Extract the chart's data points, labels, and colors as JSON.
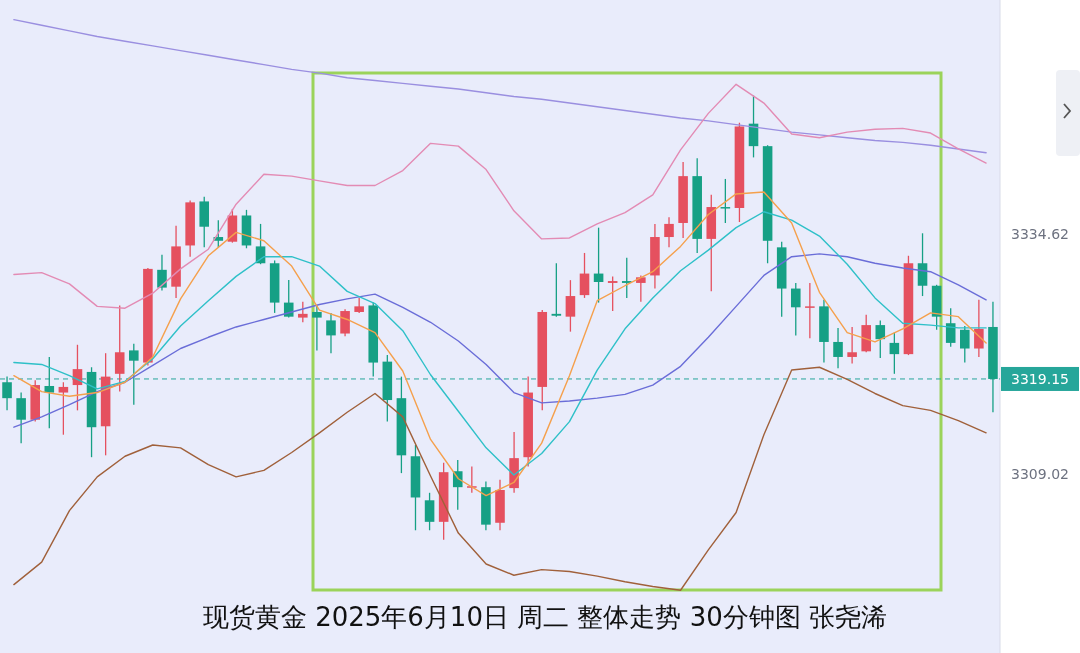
{
  "chart_data": [
    {
      "type": "candlestick",
      "categories": [
        null,
        null,
        null,
        null,
        null,
        null,
        null,
        null,
        null,
        null,
        null,
        null,
        null,
        null,
        null,
        null,
        null,
        null,
        null,
        null,
        null,
        null,
        null,
        null,
        null,
        null,
        null,
        null,
        null,
        null,
        null,
        null,
        null,
        null,
        null,
        null,
        null,
        null,
        null,
        null,
        null,
        null,
        null,
        null,
        null,
        null,
        null,
        null,
        null,
        null,
        null,
        null,
        null,
        null,
        null,
        null,
        null,
        null,
        null,
        null,
        null,
        null,
        null,
        null,
        null,
        null,
        null,
        null,
        null,
        null,
        null
      ],
      "ohlc": [
        [
          3318.8,
          3319.4,
          3315.8,
          3317.1
        ],
        [
          3317.1,
          3317.7,
          3312.3,
          3314.8
        ],
        [
          3314.8,
          3319.0,
          3314.6,
          3318.5
        ],
        [
          3318.4,
          3321.5,
          3313.9,
          3317.7
        ],
        [
          3317.7,
          3318.8,
          3313.2,
          3318.3
        ],
        [
          3318.5,
          3322.8,
          3315.8,
          3320.2
        ],
        [
          3319.9,
          3320.4,
          3310.8,
          3314.0
        ],
        [
          3314.1,
          3321.9,
          3311.0,
          3319.4
        ],
        [
          3319.7,
          3327.0,
          3317.8,
          3322.0
        ],
        [
          3322.2,
          3322.9,
          3316.4,
          3321.1
        ],
        [
          3320.9,
          3331.0,
          3320.6,
          3330.9
        ],
        [
          3330.8,
          3332.4,
          3328.6,
          3328.9
        ],
        [
          3329.0,
          3335.5,
          3327.8,
          3333.3
        ],
        [
          3333.4,
          3338.2,
          3332.2,
          3338.0
        ],
        [
          3338.1,
          3338.6,
          3333.2,
          3335.4
        ],
        [
          3334.3,
          3336.1,
          3333.2,
          3333.9
        ],
        [
          3333.8,
          3337.3,
          3333.7,
          3336.6
        ],
        [
          3336.6,
          3337.2,
          3333.1,
          3333.4
        ],
        [
          3333.3,
          3335.7,
          3331.4,
          3331.5
        ],
        [
          3331.5,
          3331.8,
          3326.2,
          3327.3
        ],
        [
          3327.3,
          3329.7,
          3325.7,
          3325.8
        ],
        [
          3325.7,
          3327.4,
          3325.2,
          3326.1
        ],
        [
          3326.3,
          3327.0,
          3322.2,
          3325.7
        ],
        [
          3325.4,
          3326.2,
          3321.9,
          3323.8
        ],
        [
          3324.0,
          3326.6,
          3323.7,
          3326.4
        ],
        [
          3326.3,
          3327.8,
          3326.2,
          3326.9
        ],
        [
          3327.0,
          3327.3,
          3319.4,
          3320.9
        ],
        [
          3321.0,
          3321.7,
          3314.6,
          3316.9
        ],
        [
          3317.1,
          3319.4,
          3309.1,
          3311.0
        ],
        [
          3310.9,
          3312.1,
          3303.0,
          3306.5
        ],
        [
          3306.2,
          3307.0,
          3303.0,
          3303.9
        ],
        [
          3303.9,
          3310.2,
          3302.0,
          3309.2
        ],
        [
          3309.3,
          3310.5,
          3305.2,
          3307.6
        ],
        [
          3307.6,
          3309.8,
          3307.0,
          3307.7
        ],
        [
          3307.6,
          3308.2,
          3303.0,
          3303.6
        ],
        [
          3303.8,
          3308.4,
          3303.0,
          3307.3
        ],
        [
          3307.5,
          3313.5,
          3307.0,
          3310.7
        ],
        [
          3310.8,
          3319.4,
          3309.8,
          3317.7
        ],
        [
          3318.3,
          3326.5,
          3315.8,
          3326.3
        ],
        [
          3326.1,
          3331.5,
          3325.8,
          3325.9
        ],
        [
          3325.8,
          3329.7,
          3324.2,
          3328.0
        ],
        [
          3328.1,
          3332.6,
          3327.8,
          3330.4
        ],
        [
          3330.4,
          3335.3,
          3327.3,
          3329.5
        ],
        [
          3329.4,
          3330.1,
          3326.4,
          3329.6
        ],
        [
          3329.6,
          3332.1,
          3327.8,
          3329.4
        ],
        [
          3329.4,
          3330.2,
          3327.4,
          3330.0
        ],
        [
          3330.2,
          3335.7,
          3328.8,
          3334.3
        ],
        [
          3334.3,
          3336.4,
          3333.2,
          3335.7
        ],
        [
          3335.8,
          3342.3,
          3334.2,
          3340.8
        ],
        [
          3340.8,
          3342.7,
          3332.6,
          3334.1
        ],
        [
          3334.1,
          3338.8,
          3328.5,
          3337.5
        ],
        [
          3337.5,
          3340.5,
          3335.8,
          3337.4
        ],
        [
          3337.4,
          3346.5,
          3335.9,
          3346.1
        ],
        [
          3346.4,
          3349.4,
          3342.8,
          3344.0
        ],
        [
          3344.0,
          3344.1,
          3331.5,
          3333.9
        ],
        [
          3333.2,
          3333.8,
          3325.8,
          3328.8
        ],
        [
          3328.8,
          3329.4,
          3323.8,
          3326.8
        ],
        [
          3326.8,
          3329.4,
          3323.5,
          3326.9
        ],
        [
          3326.9,
          3327.6,
          3320.9,
          3323.1
        ],
        [
          3323.1,
          3324.6,
          3320.3,
          3321.5
        ],
        [
          3321.5,
          3324.7,
          3320.8,
          3322.0
        ],
        [
          3322.1,
          3326.0,
          3322.0,
          3324.9
        ],
        [
          3324.9,
          3325.4,
          3321.4,
          3323.4
        ],
        [
          3323.0,
          3324.1,
          3319.7,
          3321.8
        ],
        [
          3321.8,
          3332.3,
          3321.7,
          3331.5
        ],
        [
          3331.5,
          3334.7,
          3328.0,
          3329.1
        ],
        [
          3329.1,
          3329.2,
          3324.4,
          3325.8
        ],
        [
          3325.1,
          3326.7,
          3322.6,
          3323.0
        ],
        [
          3324.4,
          3324.8,
          3320.9,
          3322.4
        ],
        [
          3322.4,
          3327.6,
          3321.5,
          3324.5
        ],
        [
          3324.7,
          3327.4,
          3315.6,
          3319.15
        ]
      ],
      "colors": [
        "#16a085",
        "#16a085",
        "#e5505f",
        "#16a085",
        "#e5505f",
        "#e5505f",
        "#16a085",
        "#e5505f",
        "#e5505f",
        "#16a085",
        "#e5505f",
        "#16a085",
        "#e5505f",
        "#e5505f",
        "#16a085",
        "#16a085",
        "#e5505f",
        "#16a085",
        "#16a085",
        "#16a085",
        "#16a085",
        "#e5505f",
        "#16a085",
        "#16a085",
        "#e5505f",
        "#e5505f",
        "#16a085",
        "#16a085",
        "#16a085",
        "#16a085",
        "#16a085",
        "#e5505f",
        "#16a085",
        "#e5505f",
        "#16a085",
        "#e5505f",
        "#e5505f",
        "#e5505f",
        "#e5505f",
        "#16a085",
        "#e5505f",
        "#e5505f",
        "#16a085",
        "#e5505f",
        "#16a085",
        "#e5505f",
        "#e5505f",
        "#e5505f",
        "#e5505f",
        "#16a085",
        "#e5505f",
        "#16a085",
        "#e5505f",
        "#16a085",
        "#16a085",
        "#16a085",
        "#16a085",
        "#e5505f",
        "#16a085",
        "#16a085",
        "#e5505f",
        "#e5505f",
        "#16a085",
        "#16a085",
        "#e5505f",
        "#16a085",
        "#16a085",
        "#16a085",
        "#16a085",
        "#e5505f",
        "#16a085"
      ],
      "ylim": [
        3289.9,
        3359.6
      ],
      "yticks": [
        3334.62,
        3309.02
      ],
      "tick_labels": "y",
      "ref_lines": [
        {
          "axis": "y",
          "value": 3319.15,
          "label": "3319.15",
          "color": "#26a69a",
          "line_style": "dashed"
        }
      ],
      "annotations": [
        "现货黄金 2025年6月10日 周二 整体走势  30分钟图 张尧浠"
      ]
    },
    {
      "type": "line",
      "categories": [
        null,
        null,
        null,
        null,
        null,
        null,
        null,
        null,
        null,
        null,
        null,
        null,
        null,
        null,
        null,
        null,
        null,
        null,
        null,
        null,
        null,
        null,
        null,
        null,
        null,
        null,
        null,
        null,
        null,
        null,
        null,
        null,
        null,
        null,
        null,
        null
      ],
      "series": [
        {
          "color": "#9a8fe0",
          "values": [
            3357.5,
            3356.9,
            3356.3,
            3355.7,
            3355.2,
            3354.7,
            3354.2,
            3353.7,
            3353.2,
            3352.7,
            3352.2,
            3351.8,
            3351.3,
            3351.0,
            3350.7,
            3350.4,
            3350.1,
            3349.7,
            3349.3,
            3349.0,
            3348.6,
            3348.2,
            3347.8,
            3347.4,
            3347.0,
            3346.7,
            3346.3,
            3345.9,
            3345.5,
            3345.2,
            3344.9,
            3344.6,
            3344.4,
            3344.1,
            3343.7,
            3343.3
          ]
        },
        {
          "color": "#e38bb4",
          "values": [
            3330.3,
            3330.5,
            3329.3,
            3326.9,
            3326.7,
            3328.3,
            3330.9,
            3333.0,
            3337.8,
            3341.0,
            3340.8,
            3340.3,
            3339.8,
            3339.8,
            3341.4,
            3344.3,
            3344.0,
            3341.5,
            3337.1,
            3334.1,
            3334.2,
            3335.7,
            3336.9,
            3338.8,
            3343.6,
            3347.5,
            3350.6,
            3348.6,
            3345.3,
            3344.9,
            3345.5,
            3345.8,
            3345.9,
            3345.4,
            3343.7,
            3342.2
          ]
        },
        {
          "color": "#a0603a",
          "values": [
            3297.2,
            3299.6,
            3305.1,
            3308.7,
            3310.9,
            3312.1,
            3311.8,
            3310.0,
            3308.7,
            3309.4,
            3311.3,
            3313.4,
            3315.6,
            3317.6,
            3315.1,
            3308.8,
            3302.7,
            3299.4,
            3298.2,
            3298.8,
            3298.6,
            3298.1,
            3297.5,
            3297.0,
            3296.6,
            3300.9,
            3304.9,
            3313.2,
            3320.1,
            3320.4,
            3319.1,
            3317.6,
            3316.3,
            3315.8,
            3314.7,
            3313.4
          ]
        },
        {
          "color": "#6a6dd8",
          "values": [
            3314.0,
            3315.1,
            3316.4,
            3317.8,
            3318.8,
            3320.6,
            3322.4,
            3323.6,
            3324.7,
            3325.5,
            3326.3,
            3327.1,
            3327.7,
            3328.2,
            3326.8,
            3325.2,
            3323.2,
            3320.7,
            3317.7,
            3316.6,
            3316.8,
            3317.1,
            3317.5,
            3318.5,
            3320.5,
            3323.6,
            3326.9,
            3330.2,
            3332.2,
            3332.5,
            3332.2,
            3331.5,
            3331.0,
            3330.6,
            3329.2,
            3327.6
          ]
        },
        {
          "color": "#2ec0c8",
          "values": [
            3320.9,
            3320.7,
            3319.5,
            3318.1,
            3318.9,
            3321.3,
            3324.8,
            3327.5,
            3330.1,
            3332.2,
            3332.2,
            3331.2,
            3328.5,
            3327.2,
            3324.3,
            3319.6,
            3315.7,
            3311.8,
            3308.9,
            3311.2,
            3314.6,
            3320.1,
            3324.5,
            3327.8,
            3330.7,
            3332.9,
            3335.3,
            3337.0,
            3336.1,
            3334.4,
            3331.4,
            3327.8,
            3325.1,
            3324.9,
            3324.6,
            3324.6
          ]
        },
        {
          "color": "#f5a04c",
          "values": [
            3319.5,
            3317.8,
            3317.3,
            3317.7,
            3318.8,
            3321.5,
            3327.7,
            3332.3,
            3334.8,
            3333.9,
            3331.2,
            3326.5,
            3325.5,
            3324.1,
            3320.0,
            3312.7,
            3308.5,
            3306.7,
            3308.1,
            3312.3,
            3319.5,
            3327.5,
            3329.1,
            3330.6,
            3333.3,
            3336.7,
            3338.9,
            3339.1,
            3335.8,
            3328.4,
            3324.1,
            3323.1,
            3324.5,
            3326.2,
            3325.8,
            3323.0
          ]
        }
      ],
      "ylim": [
        3289.9,
        3359.6
      ],
      "tick_labels": false
    }
  ]
}
